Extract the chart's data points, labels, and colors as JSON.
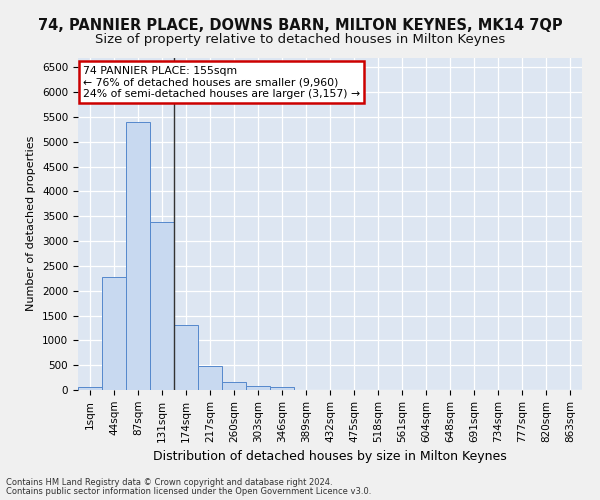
{
  "title_line1": "74, PANNIER PLACE, DOWNS BARN, MILTON KEYNES, MK14 7QP",
  "title_line2": "Size of property relative to detached houses in Milton Keynes",
  "xlabel": "Distribution of detached houses by size in Milton Keynes",
  "ylabel": "Number of detached properties",
  "footnote1": "Contains HM Land Registry data © Crown copyright and database right 2024.",
  "footnote2": "Contains public sector information licensed under the Open Government Licence v3.0.",
  "bar_labels": [
    "1sqm",
    "44sqm",
    "87sqm",
    "131sqm",
    "174sqm",
    "217sqm",
    "260sqm",
    "303sqm",
    "346sqm",
    "389sqm",
    "432sqm",
    "475sqm",
    "518sqm",
    "561sqm",
    "604sqm",
    "648sqm",
    "691sqm",
    "734sqm",
    "777sqm",
    "820sqm",
    "863sqm"
  ],
  "bar_values": [
    70,
    2280,
    5400,
    3380,
    1300,
    480,
    160,
    80,
    60,
    0,
    0,
    0,
    0,
    0,
    0,
    0,
    0,
    0,
    0,
    0,
    0
  ],
  "bar_color": "#c8d9f0",
  "bar_edge_color": "#5588cc",
  "annotation_title": "74 PANNIER PLACE: 155sqm",
  "annotation_line2": "← 76% of detached houses are smaller (9,960)",
  "annotation_line3": "24% of semi-detached houses are larger (3,157) →",
  "annotation_box_facecolor": "#ffffff",
  "annotation_box_edgecolor": "#cc0000",
  "vline_color": "#333333",
  "ylim": [
    0,
    6700
  ],
  "yticks": [
    0,
    500,
    1000,
    1500,
    2000,
    2500,
    3000,
    3500,
    4000,
    4500,
    5000,
    5500,
    6000,
    6500
  ],
  "bg_color": "#dde6f2",
  "fig_bg_color": "#f0f0f0",
  "grid_color": "#ffffff",
  "title1_fontsize": 10.5,
  "title2_fontsize": 9.5,
  "ylabel_fontsize": 8,
  "xlabel_fontsize": 9,
  "tick_fontsize": 7.5,
  "footnote_fontsize": 6
}
